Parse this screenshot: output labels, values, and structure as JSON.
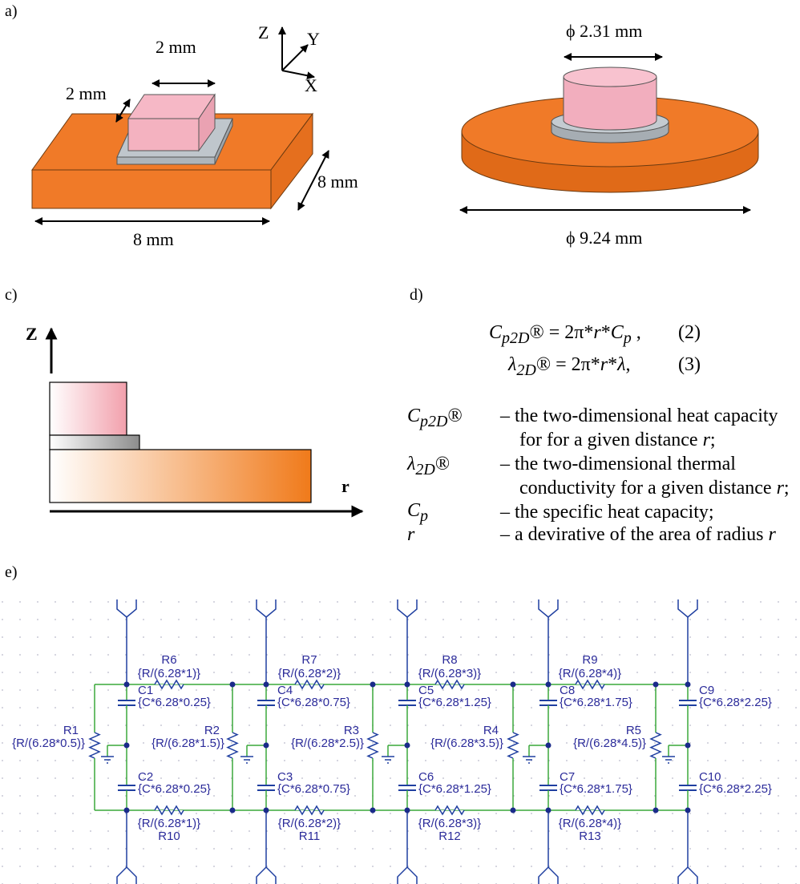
{
  "panels": {
    "a": "a)",
    "c": "c)",
    "d": "d)",
    "e": "e)"
  },
  "panel_a": {
    "dim_top": "2 mm",
    "dim_side": "2 mm",
    "dim_depth": "8 mm",
    "dim_width": "8 mm",
    "axis_z": "Z",
    "axis_y": "Y",
    "axis_x": "X"
  },
  "panel_b": {
    "dim_top": "ϕ 2.31 mm",
    "dim_bottom": "ϕ 9.24 mm"
  },
  "panel_c": {
    "axis_z": "Z",
    "axis_r": "r"
  },
  "panel_d": {
    "eq2_lhs_main": "C",
    "eq2_lhs_sub": "p2D",
    "eq2_lhs_mark": "®",
    "eq2_rhs_a": " = 2π*",
    "eq2_rhs_r": "r",
    "eq2_rhs_b": "*",
    "eq2_rhs_c": "C",
    "eq2_rhs_sub": "p",
    "eq2_rhs_end": " ,",
    "eq2_num": "(2)",
    "eq3_lhs_main": "λ",
    "eq3_lhs_sub": "2D",
    "eq3_lhs_mark": "®",
    "eq3_rhs_a": " = 2π*",
    "eq3_rhs_r": "r",
    "eq3_rhs_b": "*",
    "eq3_rhs_l": "λ",
    "eq3_rhs_end": ",",
    "eq3_num": "(3)",
    "legend": [
      {
        "sym_main": "C",
        "sym_sub": "p2D",
        "sym_mark": "®",
        "line1": "– the two-dimensional heat capacity",
        "line2": "for for a given distance ",
        "line2_r": "r",
        "line2_end": ";"
      },
      {
        "sym_main": "λ",
        "sym_sub": "2D",
        "sym_mark": "®",
        "line1": "– the two-dimensional thermal",
        "line2": "conductivity for a given distance ",
        "line2_r": "r",
        "line2_end": ";"
      },
      {
        "sym_main": "C",
        "sym_sub": "p",
        "sym_mark": "",
        "line1": "– the specific heat capacity;"
      },
      {
        "sym_main": "r",
        "sym_sub": "",
        "sym_mark": "",
        "line1": "– a devirative of the area of radius ",
        "line1_r": "r"
      }
    ]
  },
  "panel_e": {
    "top_resistors": [
      {
        "name": "R6",
        "value": "{R/(6.28*1)}"
      },
      {
        "name": "R7",
        "value": "{R/(6.28*2)}"
      },
      {
        "name": "R8",
        "value": "{R/(6.28*3)}"
      },
      {
        "name": "R9",
        "value": "{R/(6.28*4)}"
      }
    ],
    "bottom_resistors": [
      {
        "name": "R10",
        "value": "{R/(6.28*1)}"
      },
      {
        "name": "R11",
        "value": "{R/(6.28*2)}"
      },
      {
        "name": "R12",
        "value": "{R/(6.28*3)}"
      },
      {
        "name": "R13",
        "value": "{R/(6.28*4)}"
      }
    ],
    "vertical_resistors": [
      {
        "name": "R1",
        "value": "{R/(6.28*0.5)}"
      },
      {
        "name": "R2",
        "value": "{R/(6.28*1.5)}"
      },
      {
        "name": "R3",
        "value": "{R/(6.28*2.5)}"
      },
      {
        "name": "R4",
        "value": "{R/(6.28*3.5)}"
      },
      {
        "name": "R5",
        "value": "{R/(6.28*4.5)}"
      }
    ],
    "top_capacitors": [
      {
        "name": "C1",
        "value": "{C*6.28*0.25}"
      },
      {
        "name": "C4",
        "value": "{C*6.28*0.75}"
      },
      {
        "name": "C5",
        "value": "{C*6.28*1.25}"
      },
      {
        "name": "C8",
        "value": "{C*6.28*1.75}"
      },
      {
        "name": "C9",
        "value": "{C*6.28*2.25}"
      }
    ],
    "bottom_capacitors": [
      {
        "name": "C2",
        "value": "{C*6.28*0.25}"
      },
      {
        "name": "C3",
        "value": "{C*6.28*0.75}"
      },
      {
        "name": "C6",
        "value": "{C*6.28*1.25}"
      },
      {
        "name": "C7",
        "value": "{C*6.28*1.75}"
      },
      {
        "name": "C10",
        "value": "{C*6.28*2.25}"
      }
    ]
  }
}
